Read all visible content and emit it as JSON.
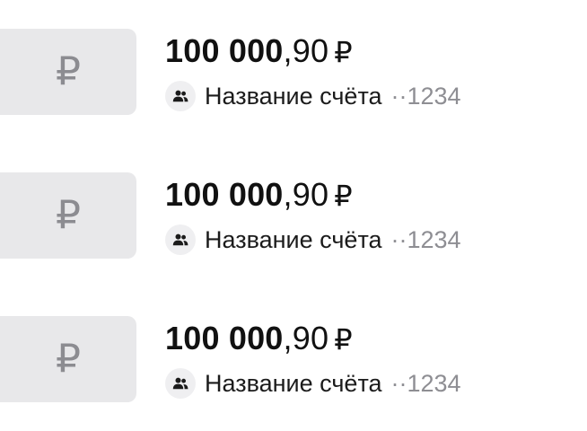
{
  "accounts": [
    {
      "currency_icon": "ruble-sign-icon",
      "currency_symbol": "₽",
      "balance_whole": "100 000",
      "balance_fraction": ",90",
      "balance_currency": "₽",
      "type_icon": "people-icon",
      "name": "Название счёта",
      "mask": "··1234"
    },
    {
      "currency_icon": "ruble-sign-icon",
      "currency_symbol": "₽",
      "balance_whole": "100 000",
      "balance_fraction": ",90",
      "balance_currency": "₽",
      "type_icon": "people-icon",
      "name": "Название счёта",
      "mask": "··1234"
    },
    {
      "currency_icon": "ruble-sign-icon",
      "currency_symbol": "₽",
      "balance_whole": "100 000",
      "balance_fraction": ",90",
      "balance_currency": "₽",
      "type_icon": "people-icon",
      "name": "Название счёта",
      "mask": "··1234"
    }
  ],
  "colors": {
    "tile_background": "#e8e8ea",
    "tile_symbol": "#8c8c91",
    "badge_background": "#efeff1",
    "text_primary": "#111111",
    "text_secondary": "#8e8e93"
  }
}
